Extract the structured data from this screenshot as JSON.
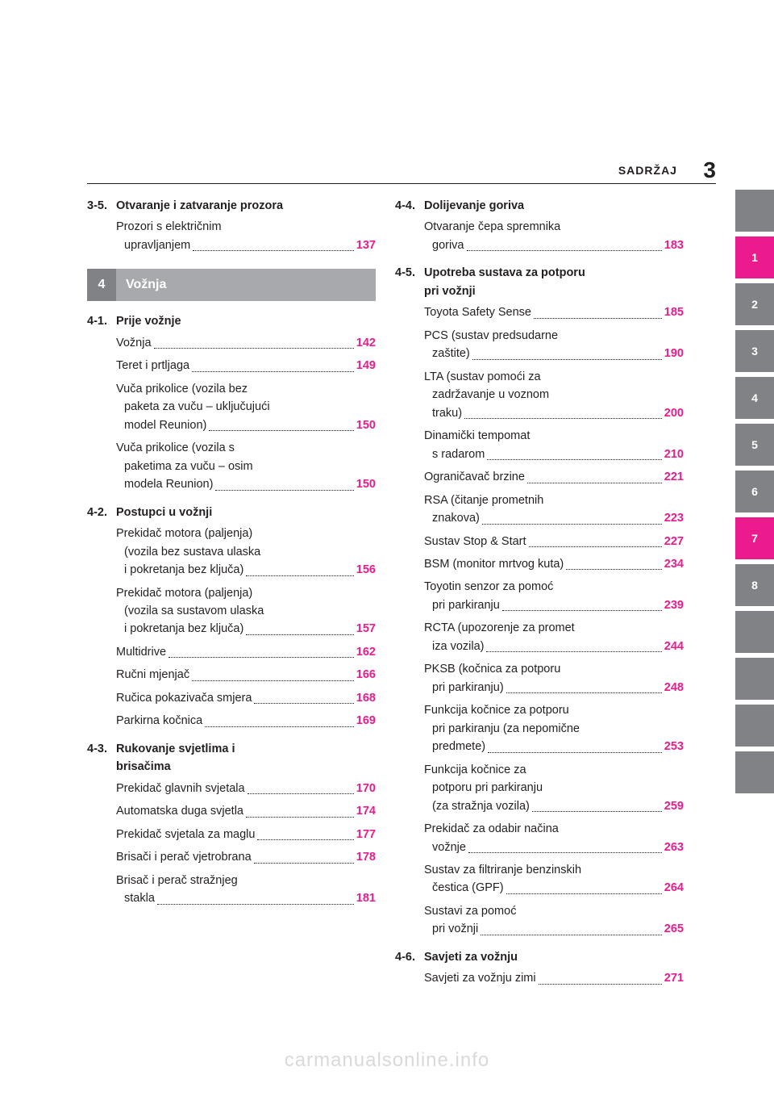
{
  "colors": {
    "accent": "#ec1b8d",
    "tab_gray": "#808285",
    "band_gray": "#a7a9ac",
    "text": "#231f20",
    "watermark": "#d9d9d9",
    "background": "#ffffff"
  },
  "header": {
    "title": "SADRŽAJ",
    "page_num": "3"
  },
  "tabs": [
    "",
    "1",
    "2",
    "3",
    "4",
    "5",
    "6",
    "7",
    "8",
    "",
    "",
    "",
    ""
  ],
  "active_tabs": [
    "1",
    "7"
  ],
  "chapter_band": {
    "num": "4",
    "title": "Vožnja"
  },
  "left": {
    "sec_3_5": {
      "num": "3-5.",
      "title": "Otvaranje i zatvaranje prozora",
      "items": [
        {
          "lines": [
            "Prozori s električnim"
          ],
          "last": "upravljanjem",
          "pg": "137"
        }
      ]
    },
    "sec_4_1": {
      "num": "4-1.",
      "title": "Prije vožnje",
      "items": [
        {
          "last": "Vožnja",
          "pg": "142"
        },
        {
          "last": "Teret i prtljaga",
          "pg": "149"
        },
        {
          "lines": [
            "Vuča prikolice (vozila bez",
            "paketa za vuču – uključujući"
          ],
          "last": "model Reunion)",
          "pg": "150"
        },
        {
          "lines": [
            "Vuča prikolice (vozila s",
            "paketima za vuču – osim"
          ],
          "last": "modela Reunion)",
          "pg": "150"
        }
      ]
    },
    "sec_4_2": {
      "num": "4-2.",
      "title": "Postupci u vožnji",
      "items": [
        {
          "lines": [
            "Prekidač motora (paljenja)",
            "(vozila bez sustava ulaska"
          ],
          "last": "i pokretanja bez ključa)",
          "pg": "156"
        },
        {
          "lines": [
            "Prekidač motora (paljenja)",
            "(vozila sa sustavom ulaska"
          ],
          "last": "i pokretanja bez ključa)",
          "pg": "157"
        },
        {
          "last": "Multidrive",
          "pg": "162"
        },
        {
          "last": "Ručni mjenjač",
          "pg": "166"
        },
        {
          "last": "Ručica pokazivača smjera",
          "pg": "168"
        },
        {
          "last": "Parkirna kočnica",
          "pg": "169"
        }
      ]
    },
    "sec_4_3": {
      "num": "4-3.",
      "title_lines": [
        "Rukovanje svjetlima i",
        "brisačima"
      ],
      "items": [
        {
          "last": "Prekidač glavnih svjetala",
          "pg": "170"
        },
        {
          "last": "Automatska duga svjetla",
          "pg": "174"
        },
        {
          "last": "Prekidač svjetala za maglu",
          "pg": "177"
        },
        {
          "last": "Brisači i perač vjetrobrana",
          "pg": "178"
        },
        {
          "lines": [
            "Brisač i perač stražnjeg"
          ],
          "last": "stakla",
          "pg": "181"
        }
      ]
    }
  },
  "right": {
    "sec_4_4": {
      "num": "4-4.",
      "title": "Dolijevanje goriva",
      "items": [
        {
          "lines": [
            "Otvaranje čepa spremnika"
          ],
          "last": "goriva",
          "pg": "183"
        }
      ]
    },
    "sec_4_5": {
      "num": "4-5.",
      "title_lines": [
        "Upotreba sustava za potporu",
        "pri vožnji"
      ],
      "items": [
        {
          "last": "Toyota Safety Sense",
          "pg": "185"
        },
        {
          "lines": [
            "PCS (sustav predsudarne"
          ],
          "last": "zaštite)",
          "pg": "190"
        },
        {
          "lines": [
            "LTA (sustav pomoći za",
            "zadržavanje u voznom"
          ],
          "last": "traku)",
          "pg": "200"
        },
        {
          "lines": [
            "Dinamički tempomat"
          ],
          "last": "s radarom",
          "pg": "210"
        },
        {
          "last": "Ograničavač brzine",
          "pg": "221"
        },
        {
          "lines": [
            "RSA (čitanje prometnih"
          ],
          "last": "znakova)",
          "pg": "223"
        },
        {
          "last": "Sustav Stop & Start",
          "pg": "227"
        },
        {
          "last": "BSM (monitor mrtvog kuta)",
          "pg": "234"
        },
        {
          "lines": [
            "Toyotin senzor za pomoć"
          ],
          "last": "pri parkiranju",
          "pg": "239"
        },
        {
          "lines": [
            "RCTA (upozorenje za promet"
          ],
          "last": "iza vozila)",
          "pg": "244"
        },
        {
          "lines": [
            "PKSB (kočnica za potporu"
          ],
          "last": "pri parkiranju)",
          "pg": "248"
        },
        {
          "lines": [
            "Funkcija kočnice za potporu",
            "pri parkiranju (za nepomične"
          ],
          "last": "predmete)",
          "pg": "253"
        },
        {
          "lines": [
            "Funkcija kočnice za",
            "potporu pri parkiranju"
          ],
          "last": "(za stražnja vozila)",
          "pg": "259"
        },
        {
          "lines": [
            "Prekidač za odabir načina"
          ],
          "last": "vožnje",
          "pg": "263"
        },
        {
          "lines": [
            "Sustav za filtriranje benzinskih"
          ],
          "last": "čestica (GPF)",
          "pg": "264"
        },
        {
          "lines": [
            "Sustavi za pomoć"
          ],
          "last": "pri vožnji",
          "pg": "265"
        }
      ]
    },
    "sec_4_6": {
      "num": "4-6.",
      "title": "Savjeti za vožnju",
      "items": [
        {
          "last": "Savjeti za vožnju zimi",
          "pg": "271"
        }
      ]
    }
  },
  "watermark": "carmanualsonline.info"
}
